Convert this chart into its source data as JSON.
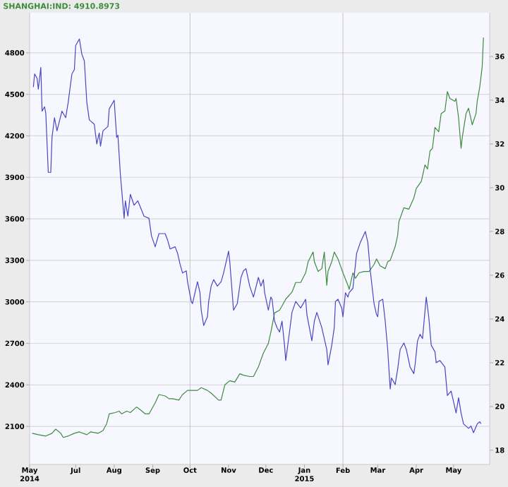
{
  "chart_data": {
    "type": "line",
    "series": [
      {
        "color": "#4646c8",
        "axis": "y2",
        "x": [
          "2014-05-28",
          "2014-05-29",
          "2014-05-31",
          "2014-06-01",
          "2014-06-03",
          "2014-06-04",
          "2014-06-06",
          "2014-06-07",
          "2014-06-09",
          "2014-06-11",
          "2014-06-12",
          "2014-06-14",
          "2014-06-16",
          "2014-06-20",
          "2014-06-23",
          "2014-06-25",
          "2014-06-28",
          "2014-06-30",
          "2014-07-01",
          "2014-07-04",
          "2014-07-06",
          "2014-07-08",
          "2014-07-10",
          "2014-07-12",
          "2014-07-16",
          "2014-07-18",
          "2014-07-20",
          "2014-07-21",
          "2014-07-23",
          "2014-07-27",
          "2014-07-28",
          "2014-08-01",
          "2014-08-03",
          "2014-08-04",
          "2014-08-06",
          "2014-08-09",
          "2014-08-10",
          "2014-08-12",
          "2014-08-14",
          "2014-08-17",
          "2014-08-20",
          "2014-08-25",
          "2014-08-29",
          "2014-08-31",
          "2014-09-03",
          "2014-09-06",
          "2014-09-11",
          "2014-09-13",
          "2014-09-15",
          "2014-09-19",
          "2014-09-21",
          "2014-09-23",
          "2014-09-25",
          "2014-09-28",
          "2014-09-29",
          "2014-10-02",
          "2014-10-03",
          "2014-10-07",
          "2014-10-09",
          "2014-10-10",
          "2014-10-12",
          "2014-10-15",
          "2014-10-16",
          "2014-10-18",
          "2014-10-20",
          "2014-10-23",
          "2014-10-26",
          "2014-10-28",
          "2014-11-01",
          "2014-11-02",
          "2014-11-05",
          "2014-11-08",
          "2014-11-11",
          "2014-11-13",
          "2014-11-15",
          "2014-11-18",
          "2014-11-21",
          "2014-11-25",
          "2014-11-27",
          "2014-11-29",
          "2014-11-30",
          "2014-12-03",
          "2014-12-05",
          "2014-12-06",
          "2014-12-08",
          "2014-12-10",
          "2014-12-12",
          "2014-12-14",
          "2014-12-16",
          "2014-12-17",
          "2014-12-20",
          "2014-12-22",
          "2014-12-25",
          "2014-12-29",
          "2015-01-02",
          "2015-01-03",
          "2015-01-07",
          "2015-01-09",
          "2015-01-11",
          "2015-01-15",
          "2015-01-19",
          "2015-01-20",
          "2015-01-23",
          "2015-01-25",
          "2015-01-26",
          "2015-01-28",
          "2015-01-31",
          "2015-02-01",
          "2015-02-03",
          "2015-02-05",
          "2015-02-06",
          "2015-02-09",
          "2015-02-12",
          "2015-02-15",
          "2015-02-19",
          "2015-02-21",
          "2015-02-23",
          "2015-02-26",
          "2015-02-28",
          "2015-03-01",
          "2015-03-02",
          "2015-03-05",
          "2015-03-07",
          "2015-03-09",
          "2015-03-11",
          "2015-03-12",
          "2015-03-15",
          "2015-03-17",
          "2015-03-19",
          "2015-03-22",
          "2015-03-24",
          "2015-03-27",
          "2015-03-30",
          "2015-03-31",
          "2015-04-02",
          "2015-04-04",
          "2015-04-06",
          "2015-04-09",
          "2015-04-11",
          "2015-04-13",
          "2015-04-16",
          "2015-04-17",
          "2015-04-20",
          "2015-04-24",
          "2015-04-26",
          "2015-04-29",
          "2015-05-03",
          "2015-05-05",
          "2015-05-07",
          "2015-05-09",
          "2015-05-13",
          "2015-05-15",
          "2015-05-17",
          "2015-05-20",
          "2015-05-22",
          "2015-05-23"
        ],
        "values": [
          34.6,
          35.2,
          35.0,
          34.5,
          35.5,
          33.5,
          33.7,
          33.4,
          30.7,
          30.7,
          32.3,
          33.2,
          32.6,
          33.5,
          33.2,
          33.9,
          35.2,
          35.4,
          36.5,
          36.8,
          36.1,
          35.8,
          33.9,
          33.1,
          32.9,
          32.0,
          32.5,
          31.9,
          32.6,
          32.8,
          33.6,
          34.0,
          32.3,
          32.4,
          30.6,
          28.6,
          29.4,
          28.7,
          29.7,
          29.2,
          29.4,
          28.7,
          28.6,
          27.8,
          27.3,
          27.9,
          27.9,
          27.6,
          27.2,
          27.3,
          27.0,
          26.5,
          26.1,
          26.2,
          25.7,
          24.8,
          24.7,
          25.7,
          25.2,
          24.4,
          23.7,
          24.1,
          24.8,
          25.5,
          25.8,
          25.5,
          25.7,
          26.1,
          27.1,
          26.6,
          24.4,
          24.7,
          25.9,
          26.2,
          26.3,
          25.5,
          25.0,
          25.9,
          25.5,
          25.8,
          25.2,
          24.4,
          25.0,
          24.9,
          23.9,
          23.6,
          23.4,
          23.9,
          22.8,
          22.1,
          23.4,
          24.3,
          24.8,
          24.5,
          24.9,
          24.2,
          23.0,
          23.9,
          24.3,
          23.6,
          22.6,
          21.9,
          22.8,
          23.6,
          24.8,
          24.9,
          24.5,
          24.1,
          25.2,
          25.0,
          25.2,
          25.4,
          27.0,
          27.5,
          28.0,
          27.5,
          26.2,
          24.7,
          24.2,
          24.1,
          24.8,
          24.9,
          23.9,
          22.6,
          20.8,
          21.3,
          21.0,
          21.7,
          22.6,
          22.9,
          22.6,
          21.8,
          21.5,
          21.9,
          23.0,
          23.3,
          23.1,
          25.0,
          24.1,
          22.8,
          22.5,
          22.0,
          22.1,
          21.8,
          20.5,
          20.7,
          19.7,
          20.4,
          19.7,
          19.2,
          19.0,
          19.1,
          18.8,
          19.2,
          19.3,
          19.21
        ]
      },
      {
        "name": "SHANGHAI:IND: 4910.8973",
        "color": "#3c8c3c",
        "x": [
          "2014-05-27",
          "2014-06-01",
          "2014-06-07",
          "2014-06-12",
          "2014-06-15",
          "2014-06-19",
          "2014-06-21",
          "2014-06-25",
          "2014-06-30",
          "2014-07-04",
          "2014-07-10",
          "2014-07-13",
          "2014-07-19",
          "2014-07-23",
          "2014-07-26",
          "2014-07-28",
          "2014-08-02",
          "2014-08-05",
          "2014-08-07",
          "2014-08-11",
          "2014-08-14",
          "2014-08-19",
          "2014-08-22",
          "2014-08-26",
          "2014-08-29",
          "2014-09-03",
          "2014-09-06",
          "2014-09-11",
          "2014-09-14",
          "2014-09-17",
          "2014-09-22",
          "2014-09-25",
          "2014-09-29",
          "2014-10-07",
          "2014-10-10",
          "2014-10-15",
          "2014-10-18",
          "2014-10-24",
          "2014-10-26",
          "2014-10-29",
          "2014-11-02",
          "2014-11-06",
          "2014-11-10",
          "2014-11-13",
          "2014-11-18",
          "2014-11-21",
          "2014-11-25",
          "2014-11-29",
          "2014-12-03",
          "2014-12-05",
          "2014-12-08",
          "2014-12-12",
          "2014-12-14",
          "2014-12-17",
          "2014-12-22",
          "2014-12-25",
          "2014-12-29",
          "2015-01-02",
          "2015-01-04",
          "2015-01-08",
          "2015-01-09",
          "2015-01-12",
          "2015-01-15",
          "2015-01-17",
          "2015-01-19",
          "2015-01-20",
          "2015-01-23",
          "2015-01-25",
          "2015-01-28",
          "2015-02-01",
          "2015-02-05",
          "2015-02-06",
          "2015-02-09",
          "2015-02-11",
          "2015-02-14",
          "2015-02-18",
          "2015-02-22",
          "2015-02-26",
          "2015-02-28",
          "2015-03-03",
          "2015-03-07",
          "2015-03-09",
          "2015-03-11",
          "2015-03-15",
          "2015-03-17",
          "2015-03-18",
          "2015-03-22",
          "2015-03-26",
          "2015-03-30",
          "2015-04-01",
          "2015-04-05",
          "2015-04-08",
          "2015-04-10",
          "2015-04-12",
          "2015-04-14",
          "2015-04-16",
          "2015-04-19",
          "2015-04-21",
          "2015-04-24",
          "2015-04-26",
          "2015-04-28",
          "2015-05-02",
          "2015-05-03",
          "2015-05-05",
          "2015-05-07",
          "2015-05-08",
          "2015-05-11",
          "2015-05-13",
          "2015-05-14",
          "2015-05-16",
          "2015-05-19",
          "2015-05-20",
          "2015-05-22",
          "2015-05-24",
          "2015-05-25"
        ],
        "values": [
          2050,
          2040,
          2030,
          2050,
          2080,
          2050,
          2020,
          2030,
          2050,
          2060,
          2040,
          2060,
          2050,
          2070,
          2120,
          2190,
          2200,
          2210,
          2190,
          2210,
          2200,
          2240,
          2220,
          2190,
          2190,
          2270,
          2330,
          2320,
          2300,
          2300,
          2290,
          2330,
          2360,
          2360,
          2380,
          2360,
          2340,
          2290,
          2290,
          2400,
          2430,
          2420,
          2480,
          2470,
          2460,
          2460,
          2530,
          2630,
          2700,
          2780,
          2920,
          2940,
          2970,
          3020,
          3070,
          3140,
          3140,
          3210,
          3290,
          3360,
          3290,
          3220,
          3240,
          3360,
          3120,
          3220,
          3290,
          3360,
          3310,
          3210,
          3120,
          3090,
          3210,
          3170,
          3210,
          3220,
          3220,
          3270,
          3310,
          3260,
          3240,
          3290,
          3300,
          3400,
          3480,
          3580,
          3680,
          3670,
          3750,
          3820,
          3870,
          3990,
          3960,
          4090,
          4110,
          4260,
          4230,
          4360,
          4380,
          4520,
          4470,
          4450,
          4470,
          4330,
          4110,
          4190,
          4360,
          4400,
          4360,
          4280,
          4360,
          4450,
          4550,
          4700,
          4910.8973
        ]
      }
    ],
    "xlim": [
      "2014-05-25",
      "2015-05-30"
    ],
    "xticks": [
      {
        "value": "2014-05-25",
        "label": "May"
      },
      {
        "value": "2014-07-01",
        "label": "Jul"
      },
      {
        "value": "2014-08-01",
        "label": "Aug"
      },
      {
        "value": "2014-09-01",
        "label": "Sep"
      },
      {
        "value": "2014-10-01",
        "label": "Oct"
      },
      {
        "value": "2014-11-01",
        "label": "Nov"
      },
      {
        "value": "2014-12-01",
        "label": "Dec"
      },
      {
        "value": "2015-01-01",
        "label": "Jan"
      },
      {
        "value": "2015-02-01",
        "label": "Feb"
      },
      {
        "value": "2015-03-01",
        "label": "Mar"
      },
      {
        "value": "2015-04-01",
        "label": "Apr"
      },
      {
        "value": "2015-05-01",
        "label": "May"
      }
    ],
    "x2lim": [
      "2014-05-25",
      "2015-05-30"
    ],
    "x2ticks": [
      {
        "value": "2014-05-25",
        "label": "2014"
      },
      {
        "value": "2015-01-01",
        "label": "2015"
      }
    ],
    "ylim": [
      1825,
      5090
    ],
    "yticks": [
      2100,
      2400,
      2700,
      3000,
      3300,
      3600,
      3900,
      4200,
      4500,
      4800
    ],
    "y2lim": [
      17.35,
      38
    ],
    "y2ticks": [
      18,
      20,
      22,
      24,
      26,
      28,
      30,
      32,
      34,
      36
    ],
    "ref_lines": [
      {
        "axis": "x",
        "value": "2014-10-01",
        "color": "#c4c4c4"
      },
      {
        "axis": "x",
        "value": "2015-02-01",
        "color": "#c4c4c4"
      }
    ],
    "grid": "y",
    "legend": "top left"
  }
}
